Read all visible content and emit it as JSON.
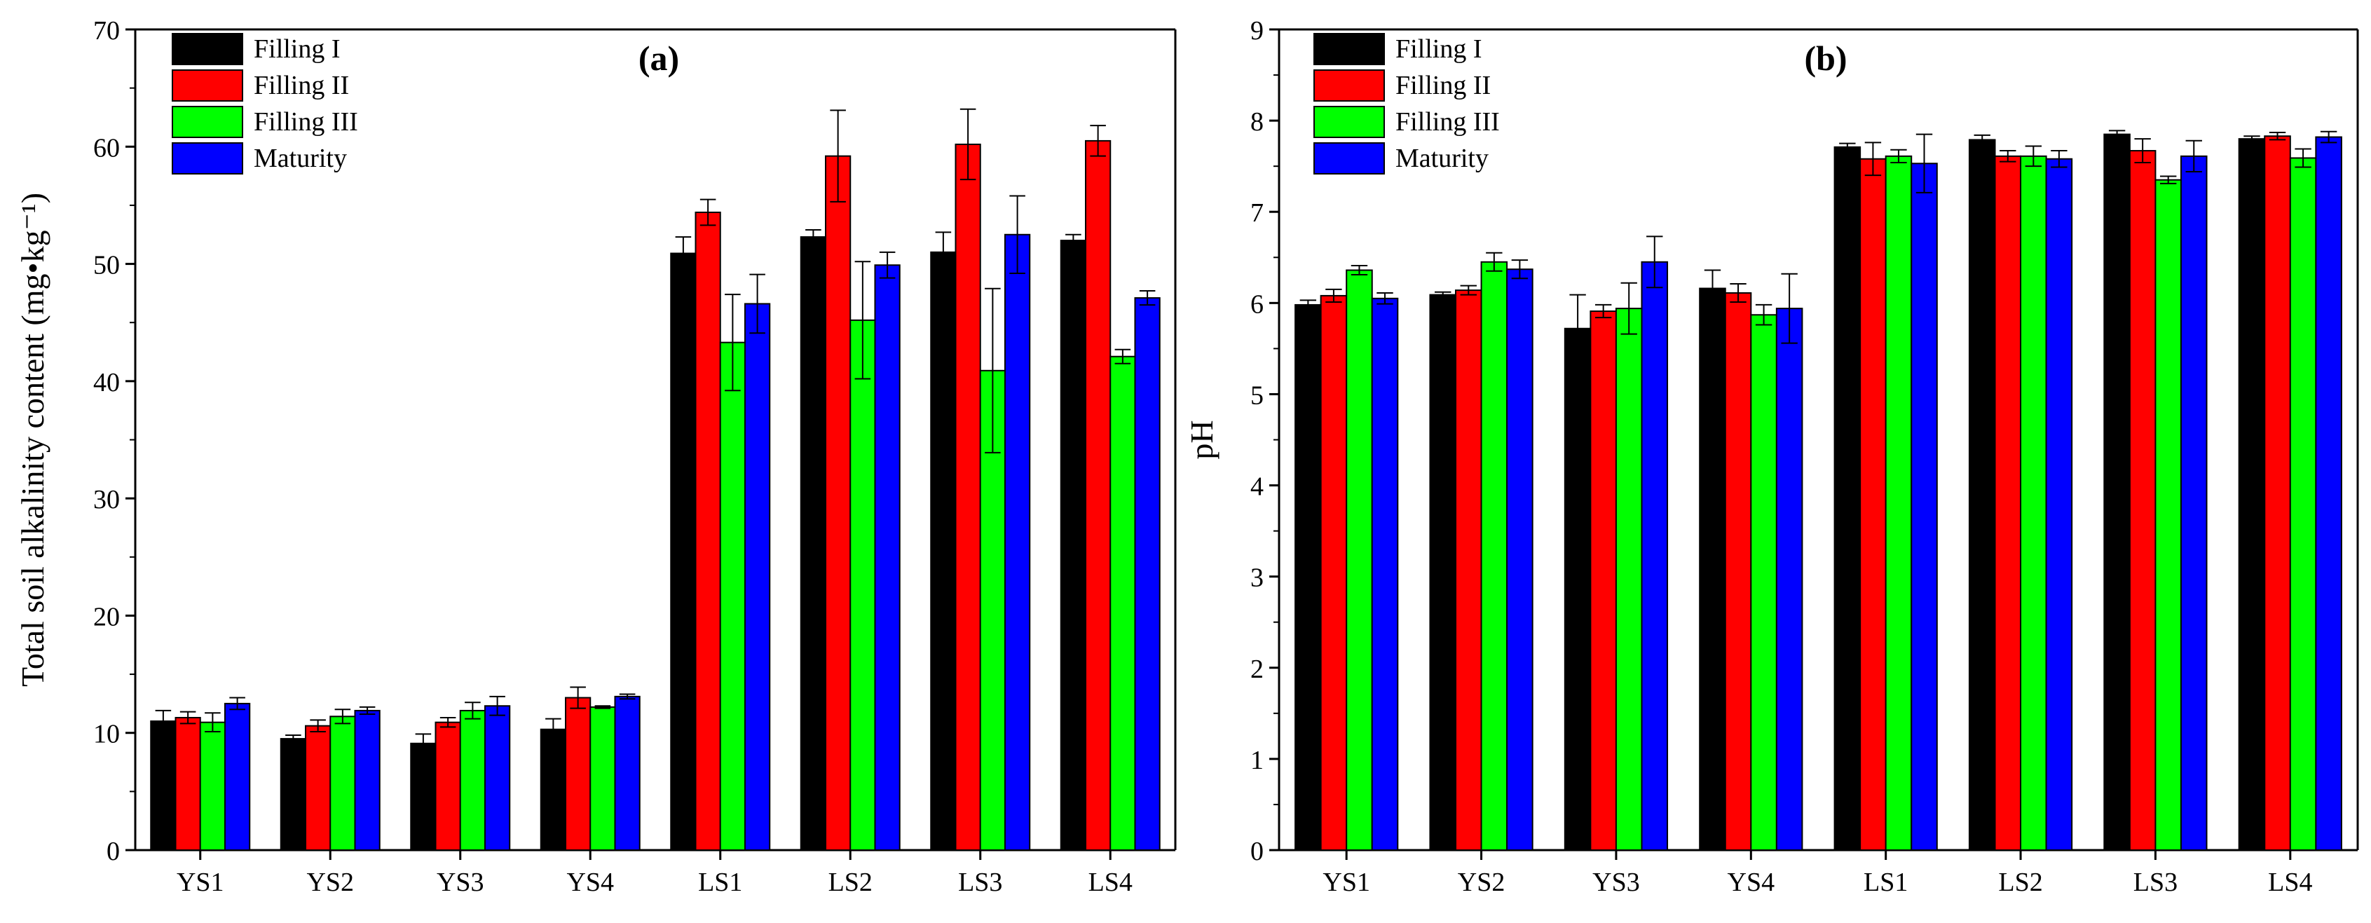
{
  "chart_data": [
    {
      "type": "bar",
      "panel_label": "(a)",
      "title": "",
      "xlabel": "",
      "ylabel": "Total soil alkalinity content (mg•kg⁻¹)",
      "ylim": [
        0,
        70
      ],
      "yticks": [
        0,
        10,
        20,
        30,
        40,
        50,
        60,
        70
      ],
      "categories": [
        "YS1",
        "YS2",
        "YS3",
        "YS4",
        "LS1",
        "LS2",
        "LS3",
        "LS4"
      ],
      "legend_position": "top-left",
      "series": [
        {
          "name": "Filling I",
          "color": "#000000",
          "values": [
            11.0,
            9.5,
            9.1,
            10.3,
            50.9,
            52.3,
            51.0,
            52.0
          ],
          "errors": [
            0.9,
            0.3,
            0.8,
            0.9,
            1.4,
            0.6,
            1.7,
            0.5
          ]
        },
        {
          "name": "Filling II",
          "color": "#ff0000",
          "values": [
            11.3,
            10.6,
            10.9,
            13.0,
            54.4,
            59.2,
            60.2,
            60.5
          ],
          "errors": [
            0.5,
            0.5,
            0.4,
            0.9,
            1.1,
            3.9,
            3.0,
            1.3
          ]
        },
        {
          "name": "Filling III",
          "color": "#00ff00",
          "values": [
            10.9,
            11.4,
            11.9,
            12.2,
            43.3,
            45.2,
            40.9,
            42.1
          ],
          "errors": [
            0.8,
            0.6,
            0.7,
            0.1,
            4.1,
            5.0,
            7.0,
            0.6
          ]
        },
        {
          "name": "Maturity",
          "color": "#0000ff",
          "values": [
            12.5,
            11.9,
            12.3,
            13.1,
            46.6,
            49.9,
            52.5,
            47.1
          ],
          "errors": [
            0.5,
            0.3,
            0.8,
            0.2,
            2.5,
            1.1,
            3.3,
            0.6
          ]
        }
      ]
    },
    {
      "type": "bar",
      "panel_label": "(b)",
      "title": "",
      "xlabel": "",
      "ylabel": "pH",
      "ylim": [
        0,
        9
      ],
      "yticks": [
        0,
        1,
        2,
        3,
        4,
        5,
        6,
        7,
        8,
        9
      ],
      "categories": [
        "YS1",
        "YS2",
        "YS3",
        "YS4",
        "LS1",
        "LS2",
        "LS3",
        "LS4"
      ],
      "legend_position": "top-left",
      "series": [
        {
          "name": "Filling I",
          "color": "#000000",
          "values": [
            5.98,
            6.09,
            5.72,
            6.16,
            7.71,
            7.79,
            7.85,
            7.8
          ],
          "errors": [
            0.05,
            0.03,
            0.37,
            0.2,
            0.04,
            0.05,
            0.04,
            0.03
          ]
        },
        {
          "name": "Filling II",
          "color": "#ff0000",
          "values": [
            6.08,
            6.14,
            5.91,
            6.11,
            7.58,
            7.61,
            7.67,
            7.83
          ],
          "errors": [
            0.07,
            0.05,
            0.07,
            0.1,
            0.18,
            0.06,
            0.13,
            0.04
          ]
        },
        {
          "name": "Filling III",
          "color": "#00ff00",
          "values": [
            6.36,
            6.45,
            5.94,
            5.87,
            7.61,
            7.61,
            7.35,
            7.59
          ],
          "errors": [
            0.05,
            0.1,
            0.28,
            0.11,
            0.07,
            0.11,
            0.04,
            0.1
          ]
        },
        {
          "name": "Maturity",
          "color": "#0000ff",
          "values": [
            6.05,
            6.37,
            6.45,
            5.94,
            7.53,
            7.58,
            7.61,
            7.82
          ],
          "errors": [
            0.06,
            0.1,
            0.28,
            0.38,
            0.32,
            0.09,
            0.17,
            0.06
          ]
        }
      ]
    }
  ]
}
